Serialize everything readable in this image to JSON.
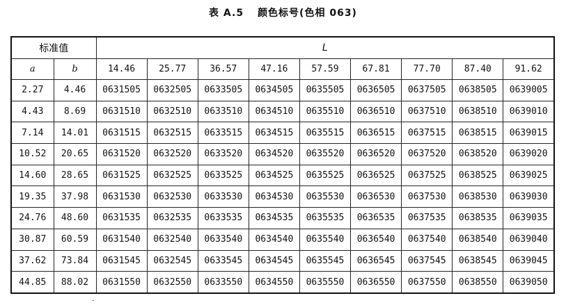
{
  "title": {
    "label": "表 A.5",
    "text": "颜色标号(色相 063)"
  },
  "header": {
    "standard_label": "标准值",
    "L_label": "L",
    "a_label": "a",
    "b_label": "b",
    "L_values": [
      "14.46",
      "25.77",
      "36.57",
      "47.16",
      "57.59",
      "67.81",
      "77.70",
      "87.40",
      "91.62"
    ]
  },
  "rows": [
    {
      "a": "2.27",
      "b": "4.46",
      "codes": [
        "0631505",
        "0632505",
        "0633505",
        "0634505",
        "0635505",
        "0636505",
        "0637505",
        "0638505",
        "0639005"
      ]
    },
    {
      "a": "4.43",
      "b": "8.69",
      "codes": [
        "0631510",
        "0632510",
        "0633510",
        "0634510",
        "0635510",
        "0636510",
        "0637510",
        "0638510",
        "0639010"
      ]
    },
    {
      "a": "7.14",
      "b": "14.01",
      "codes": [
        "0631515",
        "0632515",
        "0633515",
        "0634515",
        "0635515",
        "0636515",
        "0637515",
        "0638515",
        "0639015"
      ]
    },
    {
      "a": "10.52",
      "b": "20.65",
      "codes": [
        "0631520",
        "0632520",
        "0633520",
        "0634520",
        "0635520",
        "0636520",
        "0637520",
        "0638520",
        "0639020"
      ]
    },
    {
      "a": "14.60",
      "b": "28.65",
      "codes": [
        "0631525",
        "0632525",
        "0633525",
        "0634525",
        "0635525",
        "0636525",
        "0637525",
        "0638525",
        "0639025"
      ]
    },
    {
      "a": "19.35",
      "b": "37.98",
      "codes": [
        "0631530",
        "0632530",
        "0633530",
        "0634530",
        "0635530",
        "0636530",
        "0637530",
        "0638530",
        "0639030"
      ]
    },
    {
      "a": "24.76",
      "b": "48.60",
      "codes": [
        "0631535",
        "0632535",
        "0633535",
        "0634535",
        "0635535",
        "0636535",
        "0637535",
        "0638535",
        "0639035"
      ]
    },
    {
      "a": "30.87",
      "b": "60.59",
      "codes": [
        "0631540",
        "0632540",
        "0633540",
        "0634540",
        "0635540",
        "0636540",
        "0637540",
        "0638540",
        "0639040"
      ]
    },
    {
      "a": "37.62",
      "b": "73.84",
      "codes": [
        "0631545",
        "0632545",
        "0633545",
        "0634545",
        "0635545",
        "0636545",
        "0637545",
        "0638545",
        "0639045"
      ]
    },
    {
      "a": "44.85",
      "b": "88.02",
      "codes": [
        "0631550",
        "0632550",
        "0633550",
        "0634550",
        "0635550",
        "0636550",
        "0637550",
        "0638550",
        "0639050"
      ]
    }
  ]
}
